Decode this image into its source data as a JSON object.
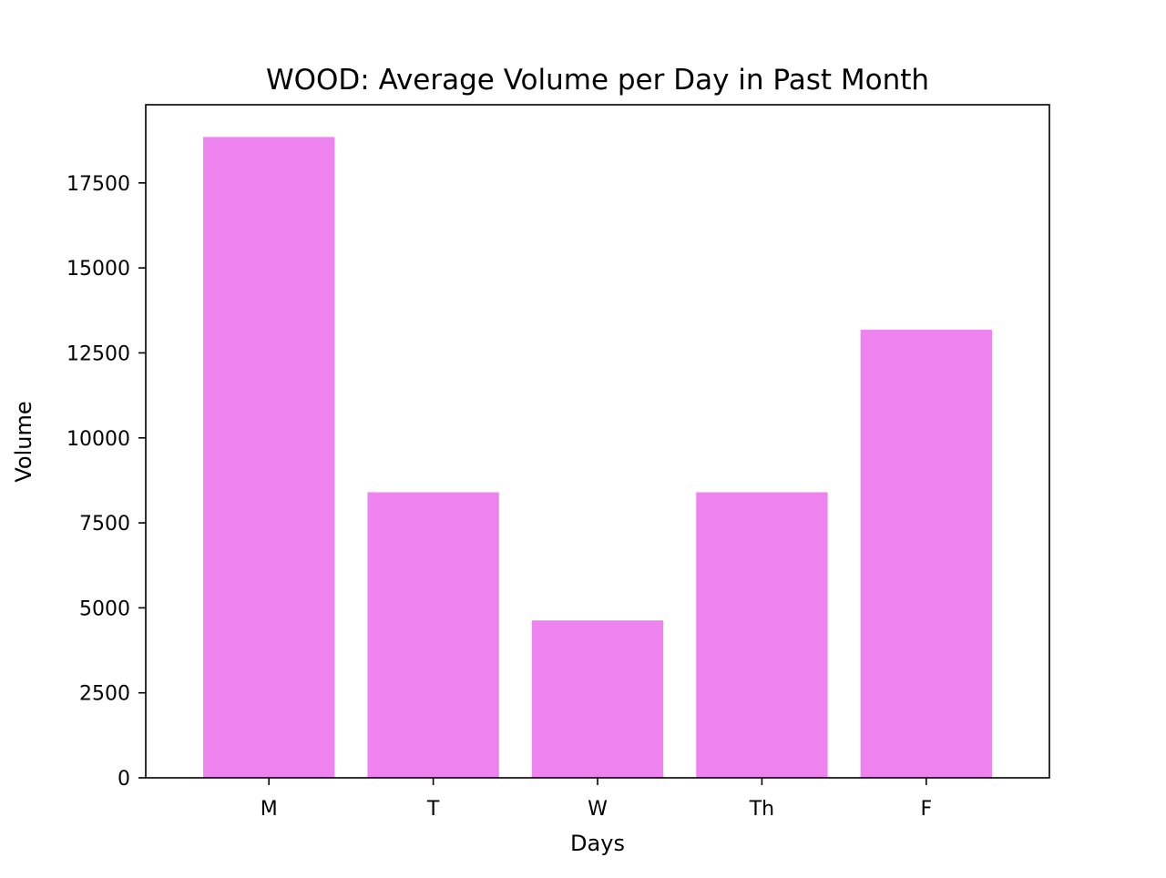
{
  "chart_data": {
    "type": "bar",
    "title": "WOOD: Average Volume per Day in Past Month",
    "xlabel": "Days",
    "ylabel": "Volume",
    "categories": [
      "M",
      "T",
      "W",
      "Th",
      "F"
    ],
    "values": [
      18850,
      8400,
      4630,
      8400,
      13180
    ],
    "ylim": [
      0,
      19800
    ],
    "yticks": [
      0,
      2500,
      5000,
      7500,
      10000,
      12500,
      15000,
      17500
    ],
    "bar_color": "#ee82ee",
    "grid": false,
    "legend": "none"
  }
}
